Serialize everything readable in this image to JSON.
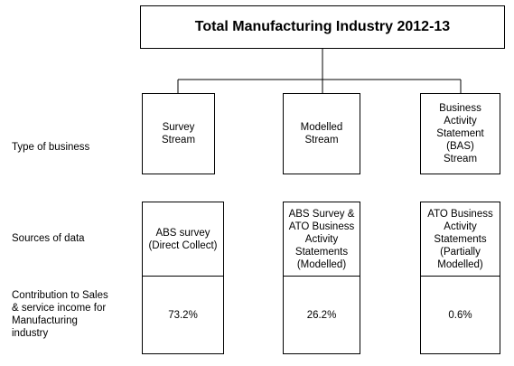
{
  "title": "Total Manufacturing Industry 2012-13",
  "row_labels": {
    "type_of_business": "Type of business",
    "sources_of_data": "Sources of data",
    "contribution": "Contribution to Sales\n& service income for\nManufacturing\nindustry"
  },
  "streams": [
    {
      "name": "Survey\nStream",
      "source": "ABS survey\n(Direct Collect)",
      "contribution": "73.2%"
    },
    {
      "name": "Modelled\nStream",
      "source": "ABS Survey &\nATO Business\nActivity\nStatements\n(Modelled)",
      "contribution": "26.2%"
    },
    {
      "name": "Business\nActivity\nStatement\n(BAS)\nStream",
      "source": "ATO Business\nActivity\nStatements\n(Partially\nModelled)",
      "contribution": "0.6%"
    }
  ]
}
